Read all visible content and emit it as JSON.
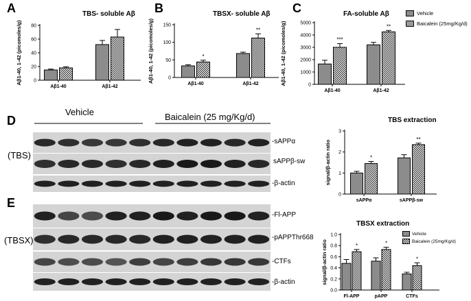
{
  "colors": {
    "vehicle": "#8c8c8c",
    "baicalein": "#ffffff",
    "axis": "#000000"
  },
  "chart_data": [
    {
      "id": "A",
      "type": "bar",
      "title": "TBS- soluble Aβ",
      "ylabel": "Aβ1-40, 1-42 (picomoles/g)",
      "ylim": [
        0,
        80
      ],
      "yticks": [
        0,
        20,
        40,
        60,
        80
      ],
      "categories": [
        "Aβ1-40",
        "Aβ1-42"
      ],
      "series": [
        {
          "name": "Vehicle",
          "values": [
            15,
            52
          ],
          "errors": [
            1.2,
            6
          ]
        },
        {
          "name": "Baicalein (25mg/Kg/d)",
          "values": [
            18,
            63
          ],
          "errors": [
            1.5,
            11
          ]
        }
      ],
      "annotations": [
        [
          "",
          ""
        ],
        [
          "",
          ""
        ]
      ]
    },
    {
      "id": "B",
      "type": "bar",
      "title": "TBSX- soluble Aβ",
      "ylabel": "Aβ1-40, 1-42 (picomoles/g)",
      "ylim": [
        0,
        150
      ],
      "yticks": [
        0,
        50,
        100,
        150
      ],
      "categories": [
        "Aβ1-40",
        "Aβ1-42"
      ],
      "series": [
        {
          "name": "Vehicle",
          "values": [
            33,
            68
          ],
          "errors": [
            3,
            4
          ]
        },
        {
          "name": "Baicalein (25mg/Kg/d)",
          "values": [
            44,
            112
          ],
          "errors": [
            5,
            12
          ]
        }
      ],
      "annotations": [
        [
          "",
          "*"
        ],
        [
          "",
          "**"
        ]
      ]
    },
    {
      "id": "C",
      "type": "bar",
      "title": "FA-soluble Aβ",
      "ylabel": "Aβ1-40, 1-42 (picomoles/g)",
      "ylim": [
        0,
        5000
      ],
      "yticks": [
        0,
        1000,
        2000,
        3000,
        4000,
        5000
      ],
      "categories": [
        "Aβ1-40",
        "Aβ1-42"
      ],
      "series": [
        {
          "name": "Vehicle",
          "values": [
            1650,
            3200
          ],
          "errors": [
            300,
            200
          ]
        },
        {
          "name": "Baicalein (25mg/Kg/d)",
          "values": [
            3000,
            4250
          ],
          "errors": [
            300,
            120
          ]
        }
      ],
      "annotations": [
        [
          "",
          "***"
        ],
        [
          "",
          "**"
        ]
      ]
    },
    {
      "id": "D",
      "type": "bar",
      "title": "TBS extraction",
      "ylabel": "signal/β-actin ratio",
      "ylim": [
        0,
        3
      ],
      "yticks": [
        0,
        1,
        2,
        3
      ],
      "categories": [
        "sAPPα",
        "sAPPβ-sw"
      ],
      "series": [
        {
          "name": "Vehicle",
          "values": [
            1.0,
            1.72
          ],
          "errors": [
            0.08,
            0.15
          ]
        },
        {
          "name": "Baicalein (25mg/Kg/d)",
          "values": [
            1.45,
            2.35
          ],
          "errors": [
            0.1,
            0.07
          ]
        }
      ],
      "annotations": [
        [
          "",
          "*"
        ],
        [
          "",
          "**"
        ]
      ]
    },
    {
      "id": "E",
      "type": "bar",
      "title": "TBSX extraction",
      "ylabel": "signal/β-actin ratio",
      "ylim": [
        0,
        1.0
      ],
      "yticks": [
        0.0,
        0.2,
        0.4,
        0.6,
        0.8,
        1.0
      ],
      "categories": [
        "Fl-APP",
        "pAPP",
        "CTFs"
      ],
      "series": [
        {
          "name": "Vehicle",
          "values": [
            0.48,
            0.52,
            0.29
          ],
          "errors": [
            0.07,
            0.06,
            0.03
          ]
        },
        {
          "name": "Baicalein (25mg/Kg/d)",
          "values": [
            0.69,
            0.73,
            0.44
          ],
          "errors": [
            0.04,
            0.04,
            0.05
          ]
        }
      ],
      "annotations": [
        [
          "",
          "*"
        ],
        [
          "",
          "*"
        ],
        [
          "",
          "*"
        ]
      ]
    }
  ],
  "legend_main": {
    "vehicle": "Vehicle",
    "baicalein": "Baicalein (25mg/Kg/d)"
  },
  "legend_e": {
    "vehicle": "Vehicle",
    "baicalein": "Baicalein (25mg/Kg/d)"
  },
  "blots": {
    "header_vehicle": "Vehicle",
    "header_baicalein": "Baicalein (25 mg/Kg/d)",
    "tbs_label": "(TBS)",
    "tbsx_label": "(TBSX)",
    "tbs_bands": [
      "-sAPPα",
      "sAPPβ-sw",
      "-β-actin"
    ],
    "tbsx_bands": [
      "-Fl-APP",
      "-pAPPThr668",
      "-CTFs",
      "-β-actin"
    ]
  },
  "letters": [
    "A",
    "B",
    "C",
    "D",
    "E"
  ]
}
